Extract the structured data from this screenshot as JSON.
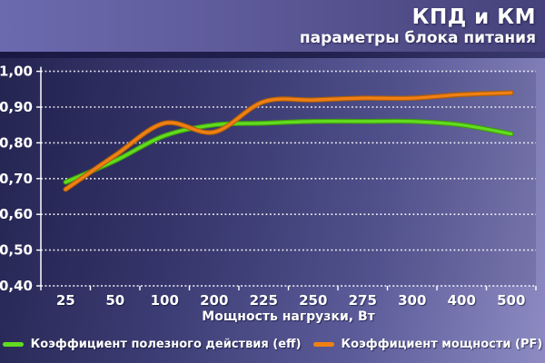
{
  "header": {
    "title": "КПД и КМ",
    "subtitle": "параметры блока питания"
  },
  "chart_data": {
    "type": "line",
    "title": "КПД и КМ",
    "subtitle": "параметры блока питания",
    "categories": [
      "25",
      "50",
      "100",
      "200",
      "225",
      "250",
      "275",
      "300",
      "400",
      "500"
    ],
    "xlabel": "Мощность нагрузки, Вт",
    "ylabel": "",
    "ylim": [
      0.4,
      1.0
    ],
    "y_tick_labels": [
      "1,00",
      "0,90",
      "0,80",
      "0,70",
      "0,60",
      "0,50",
      "0,40"
    ],
    "y_tick_values": [
      1.0,
      0.9,
      0.8,
      0.7,
      0.6,
      0.5,
      0.4
    ],
    "grid": "horizontal dotted white",
    "legend_position": "bottom",
    "series": [
      {
        "name": "Коэффициент полезного действия (eff)",
        "color": "#62dc1f",
        "edge_color": "#3f9a10",
        "values": [
          0.69,
          0.75,
          0.82,
          0.85,
          0.855,
          0.86,
          0.86,
          0.86,
          0.85,
          0.825
        ]
      },
      {
        "name": "Коэффициент мощности (PF)",
        "color": "#f08014",
        "edge_color": "#b05e08",
        "values": [
          0.67,
          0.765,
          0.855,
          0.83,
          0.915,
          0.92,
          0.925,
          0.925,
          0.935,
          0.94
        ]
      }
    ]
  }
}
